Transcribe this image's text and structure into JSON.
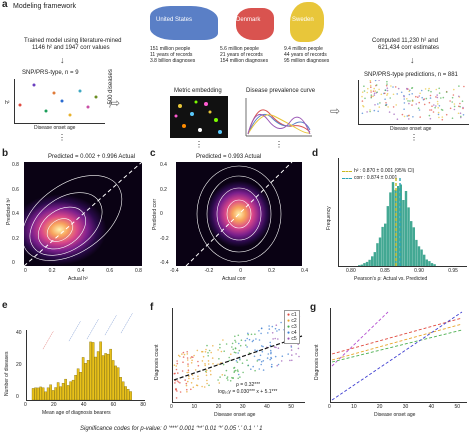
{
  "panel_a": {
    "letter": "a",
    "framework_title": "Modeling framework",
    "trained_text_1": "Trained model using literature-mined",
    "trained_text_2": "1146 h² and 1947 corr values",
    "snp_title": "SNP/PRS-type, n = 9",
    "snp_ylabel": "h²",
    "snp_xlabel": "Disease onset age",
    "diseases_label": "~500 diseases",
    "metric_label": "Metric embedding",
    "prevalence_label": "Disease prevalence curve",
    "computed_1": "Computed 11,230 h² and",
    "computed_2": "621,434 corr estimates",
    "pred_title": "SNP/PRS-type predictions, n = 881",
    "pred_xlabel": "Disease onset age",
    "countries": [
      {
        "name": "United States",
        "color": "#5a7fc6",
        "stats": [
          "151 million people",
          "11 years of records",
          "3.8 billion diagnoses"
        ]
      },
      {
        "name": "Denmark",
        "color": "#d9534f",
        "stats": [
          "5.6 million people",
          "21 years of records",
          "154 million diagnoses"
        ]
      },
      {
        "name": "Sweden",
        "color": "#e8c63a",
        "stats": [
          "9.4 million people",
          "44 years of records",
          "95 million diagnoses"
        ]
      }
    ]
  },
  "panel_b": {
    "letter": "b",
    "title": "Predicted = 0.002 + 0.996 Actual",
    "xlabel": "Actual h²",
    "ylabel": "Predicted h²",
    "xticks": [
      "0",
      "0.2",
      "0.4",
      "0.6",
      "0.8"
    ],
    "yticks": [
      "0",
      "0.2",
      "0.4",
      "0.6",
      "0.8"
    ]
  },
  "panel_c": {
    "letter": "c",
    "title": "Predicted = 0.993 Actual",
    "xlabel": "Actual corr",
    "ylabel": "Predicted corr",
    "xticks": [
      "-0.4",
      "-0.2",
      "0",
      "0.2",
      "0.4"
    ],
    "yticks": [
      "-0.4",
      "-0.2",
      "0",
      "0.2",
      "0.4"
    ]
  },
  "panel_d": {
    "letter": "d",
    "legend_h2": "h² : 0.870 ± 0.001 (95% CI)",
    "legend_corr": "corr : 0.874 ± 0.001",
    "xlabel": "Pearson's ρ: Actual vs. Predicted",
    "ylabel": "Frequency",
    "xticks": [
      "0.80",
      "0.85",
      "0.90",
      "0.95"
    ]
  },
  "panel_e": {
    "letter": "e",
    "xlabel": "Mean age of diagnosis bearers",
    "ylabel": "Number of diseases",
    "xticks": [
      "0",
      "20",
      "40",
      "60",
      "80"
    ],
    "yticks": [
      "0",
      "20",
      "40"
    ]
  },
  "panel_f": {
    "letter": "f",
    "xlabel": "Disease onset age",
    "ylabel": "Diagnosis count",
    "rho": "ρ = 0.32***",
    "eq": "log₁₀y = 0.030*** x + 5.1***",
    "legend": [
      "c1",
      "c2",
      "c3",
      "c4",
      "c5"
    ],
    "xticks": [
      "0",
      "10",
      "20",
      "30",
      "40",
      "50"
    ]
  },
  "panel_g": {
    "letter": "g",
    "xlabel": "Disease onset age",
    "ylabel": "Diagnosis count",
    "xticks": [
      "0",
      "10",
      "20",
      "30",
      "40",
      "50"
    ]
  },
  "footer": "Significance codes for p-value: 0 ‘***’ 0.001 ‘**’ 0.01 ‘*’ 0.05 ‘.’ 0.1 ‘ ’ 1"
}
